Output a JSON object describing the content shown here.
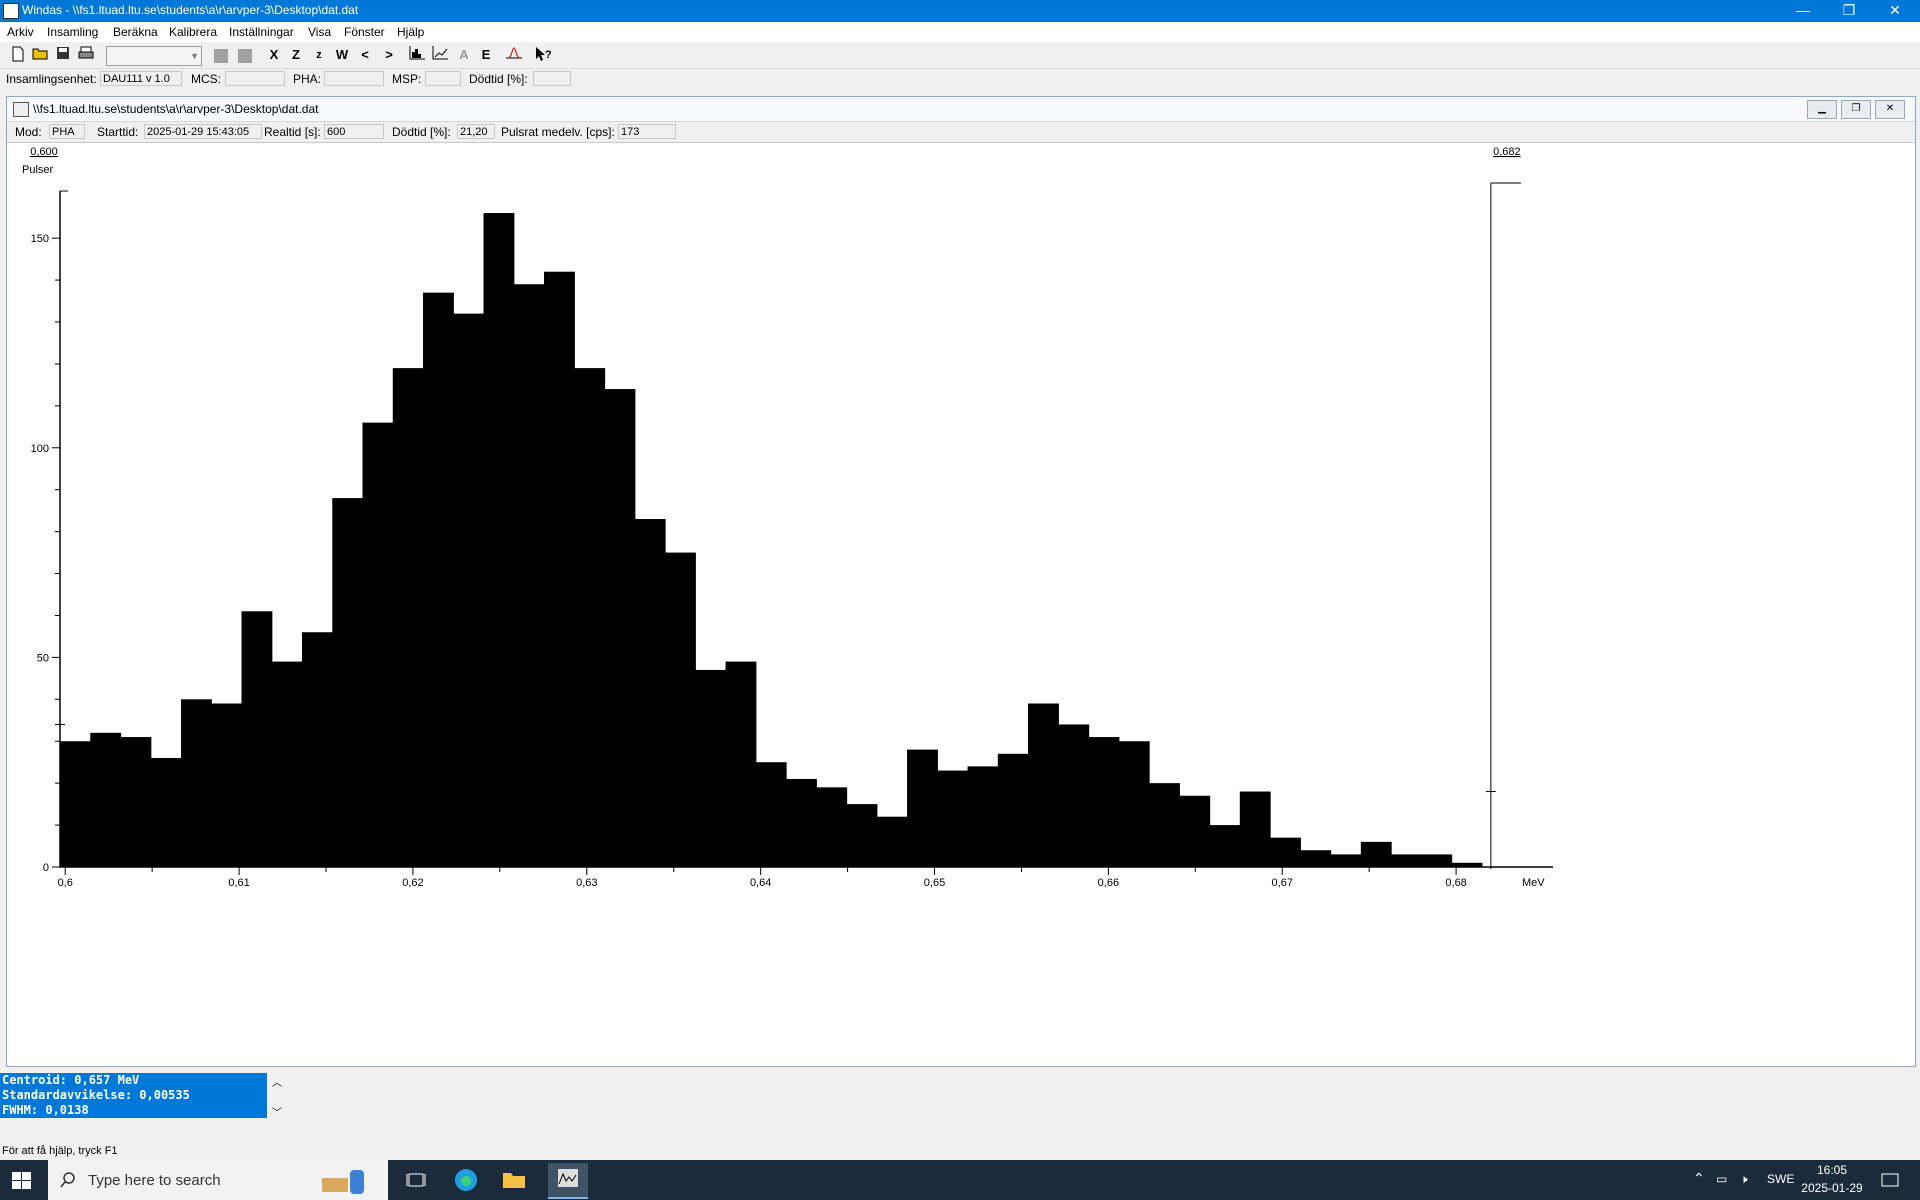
{
  "window": {
    "title": "Windas - \\\\fs1.ltuad.ltu.se\\students\\a\\r\\arvper-3\\Desktop\\dat.dat",
    "minimize": "—",
    "restore": "❐",
    "close": "✕"
  },
  "menu": [
    "Arkiv",
    "Insamling",
    "Beräkna",
    "Kalibrera",
    "Inställningar",
    "Visa",
    "Fönster",
    "Hjälp"
  ],
  "toolbar": {
    "tools": [
      "X",
      "Z",
      "z",
      "W",
      "<",
      ">",
      "E"
    ],
    "combo_value": ""
  },
  "infobar": {
    "unit_label": "Insamlingsenhet:",
    "unit_value": "DAU111 v 1.0",
    "mcs_label": "MCS:",
    "mcs_value": "",
    "pha_label": "PHA:",
    "pha_value": "",
    "msp_label": "MSP:",
    "msp_value": "",
    "dead_label": "Dödtid [%]:",
    "dead_value": ""
  },
  "child": {
    "title": "\\\\fs1.ltuad.ltu.se\\students\\a\\r\\arvper-3\\Desktop\\dat.dat",
    "mode_label": "Mod:",
    "mode_value": "PHA",
    "start_label": "Starttid:",
    "start_value": "2025-01-29  15:43:05",
    "real_label": "Realtid [s]:",
    "real_value": "600",
    "dead_label": "Dödtid [%]:",
    "dead_value": "21,20",
    "rate_label": "Pulsrat medelv. [cps]:",
    "rate_value": "173"
  },
  "chart_data": {
    "type": "bar",
    "ylabel": "Pulser",
    "xlabel": "MeV",
    "left_cursor": "0,600",
    "right_cursor": "0,682",
    "xlim": [
      0.5997,
      0.6831
    ],
    "ylim": [
      0,
      156
    ],
    "y_ticks": [
      "0",
      "50",
      "100",
      "150"
    ],
    "x_ticks": [
      "0,6",
      "0,61",
      "0,62",
      "0,63",
      "0,64",
      "0,65",
      "0,66",
      "0,67",
      "0,68"
    ],
    "bin_start": 0.5997,
    "bin_width": 0.00174,
    "values": [
      30,
      32,
      31,
      26,
      40,
      39,
      61,
      49,
      56,
      88,
      106,
      119,
      137,
      132,
      156,
      139,
      142,
      119,
      114,
      83,
      75,
      47,
      49,
      25,
      21,
      19,
      15,
      12,
      28,
      23,
      24,
      27,
      39,
      34,
      31,
      30,
      20,
      17,
      10,
      18,
      7,
      4,
      3,
      6,
      3,
      3,
      1,
      0
    ]
  },
  "results": {
    "centroid": "Centroid: 0,657 MeV",
    "std": "Standardavvikelse: 0,00535",
    "fwhm": "FWHM: 0,0138"
  },
  "status_text": "För att få hjälp, tryck F1",
  "taskbar": {
    "search_placeholder": "Type here to search",
    "language": "SWE",
    "time": "16:05",
    "date": "2025-01-29"
  }
}
